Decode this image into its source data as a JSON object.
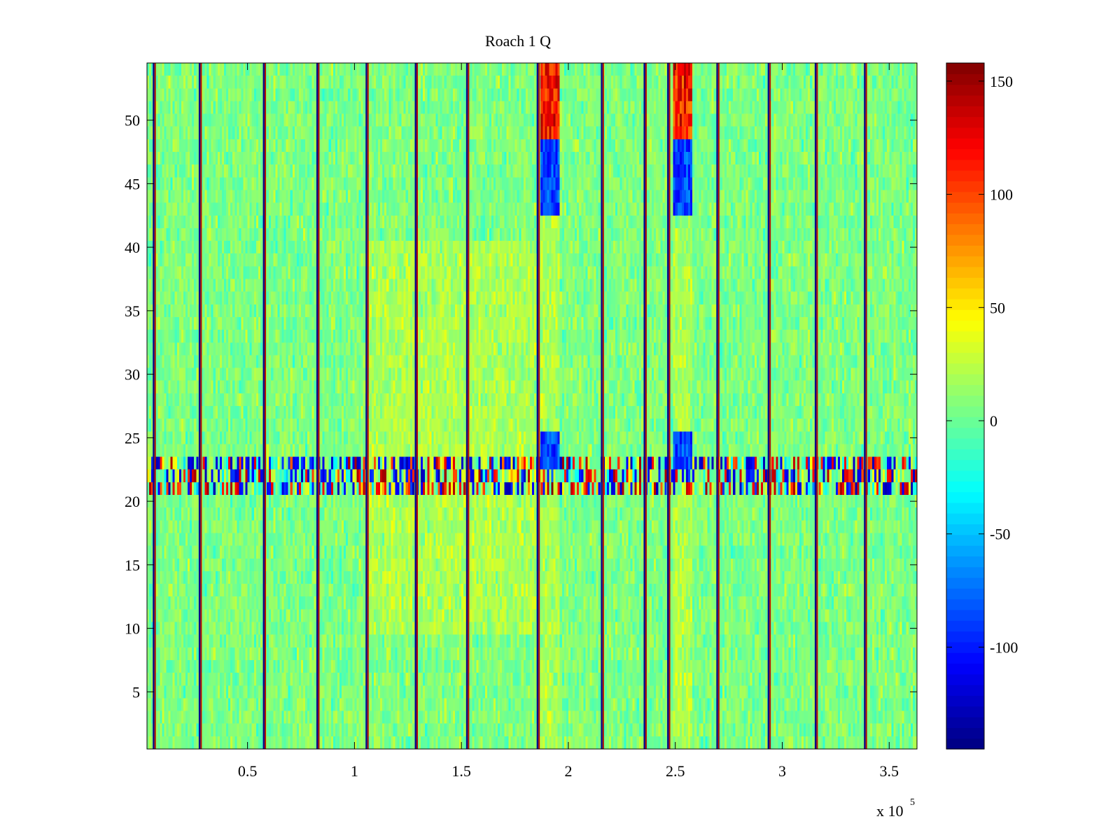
{
  "chart_data": {
    "type": "heatmap",
    "title": "Roach 1 Q",
    "xlabel": "",
    "ylabel": "",
    "x_multiplier_label": "x 10",
    "x_multiplier_exponent": "5",
    "xlim": [
      3000,
      363000
    ],
    "ylim": [
      0.5,
      54.5
    ],
    "x_ticks": [
      0.5,
      1,
      1.5,
      2,
      2.5,
      3,
      3.5
    ],
    "x_tick_labels": [
      "0.5",
      "1",
      "1.5",
      "2",
      "2.5",
      "3",
      "3.5"
    ],
    "y_ticks": [
      5,
      10,
      15,
      20,
      25,
      30,
      35,
      40,
      45,
      50
    ],
    "y_tick_labels": [
      "5",
      "10",
      "15",
      "20",
      "25",
      "30",
      "35",
      "40",
      "45",
      "50"
    ],
    "rows": 54,
    "colormap": "jet",
    "clim": [
      -145,
      158
    ],
    "colorbar_ticks": [
      -100,
      -50,
      0,
      50,
      100,
      150
    ],
    "colorbar_tick_labels": [
      "-100",
      "-50",
      "0",
      "50",
      "100",
      "150"
    ],
    "vertical_stripes_x": [
      6500,
      28000,
      58000,
      83000,
      106000,
      129000,
      153000,
      186000,
      216000,
      236000,
      247000,
      270000,
      294000,
      316000,
      339000
    ],
    "hot_columns": [
      {
        "x_range": [
          187000,
          196000
        ],
        "rows_red": [
          49,
          50,
          51,
          52,
          53,
          54
        ],
        "rows_blue": [
          23,
          24,
          25,
          43,
          44,
          45,
          46,
          47,
          48,
          49
        ]
      },
      {
        "x_range": [
          249000,
          258000
        ],
        "rows_red": [
          49,
          50,
          51,
          52,
          53,
          54
        ],
        "rows_blue": [
          23,
          24,
          25,
          43,
          44,
          45,
          46,
          47,
          48,
          49
        ]
      }
    ],
    "noisy_band_rows": [
      21,
      22,
      23
    ],
    "warm_region": {
      "x_range": [
        105000,
        185000
      ],
      "rows": [
        10,
        40
      ]
    },
    "grid": false,
    "legend": "colorbar-right"
  }
}
